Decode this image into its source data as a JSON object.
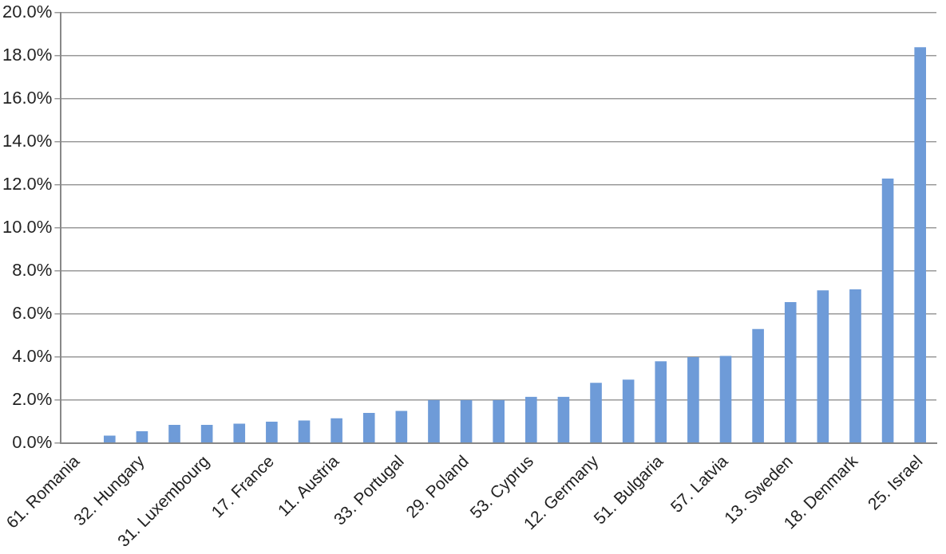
{
  "chart_data": {
    "type": "bar",
    "categories": [
      "61. Romania",
      null,
      "32. Hungary",
      null,
      "31. Luxembourg",
      null,
      "17. France",
      null,
      "11. Austria",
      null,
      "33. Portugal",
      null,
      "29. Poland",
      null,
      "53. Cyprus",
      null,
      "12. Germany",
      null,
      "51. Bulgaria",
      null,
      "57. Latvia",
      null,
      "13. Sweden",
      null,
      "18. Denmark",
      null,
      "25. Israel"
    ],
    "values": [
      null,
      0.35,
      0.55,
      0.85,
      0.85,
      0.9,
      1.0,
      1.05,
      1.15,
      1.4,
      1.5,
      2.0,
      2.0,
      2.0,
      2.15,
      2.15,
      2.8,
      2.95,
      3.8,
      4.0,
      4.05,
      5.3,
      6.55,
      7.1,
      7.15,
      12.3,
      18.4
    ],
    "color": "#6e9bd8",
    "ylim": [
      0,
      20
    ],
    "yticks": [
      {
        "value": 0,
        "label": "0.0%"
      },
      {
        "value": 2,
        "label": "2.0%"
      },
      {
        "value": 4,
        "label": "4.0%"
      },
      {
        "value": 6,
        "label": "6.0%"
      },
      {
        "value": 8,
        "label": "8.0%"
      },
      {
        "value": 10,
        "label": "10.0%"
      },
      {
        "value": 12,
        "label": "12.0%"
      },
      {
        "value": 14,
        "label": "14.0%"
      },
      {
        "value": 16,
        "label": "16.0%"
      },
      {
        "value": 18,
        "label": "18.0%"
      },
      {
        "value": 20,
        "label": "20.0%"
      }
    ],
    "grid": "y",
    "legend": false
  }
}
